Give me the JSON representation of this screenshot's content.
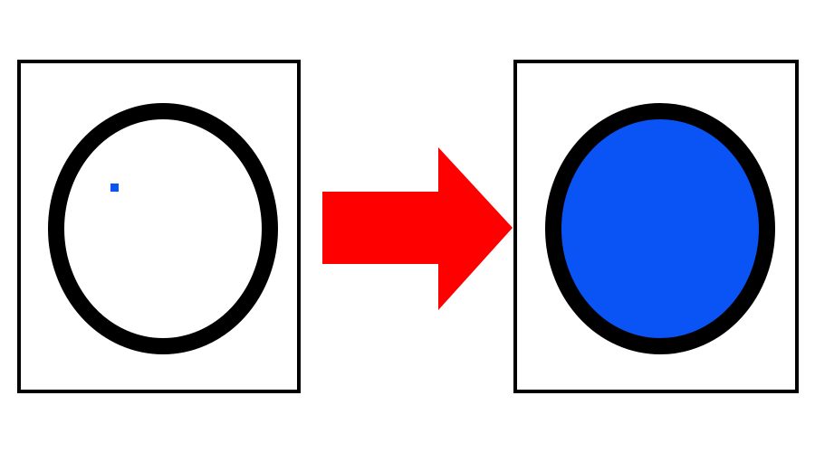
{
  "colors": {
    "background": "#ffffff",
    "frame_stroke": "#000000",
    "outline": "#000000",
    "seed_point": "#0a53f5",
    "fill": "#0a53f5",
    "arrow": "#ff0000"
  },
  "before_panel": {
    "shape": "circle-outline",
    "filled": false,
    "seed_point_visible": true
  },
  "transition": {
    "icon": "right-arrow-icon"
  },
  "after_panel": {
    "shape": "circle-outline",
    "filled": true
  }
}
